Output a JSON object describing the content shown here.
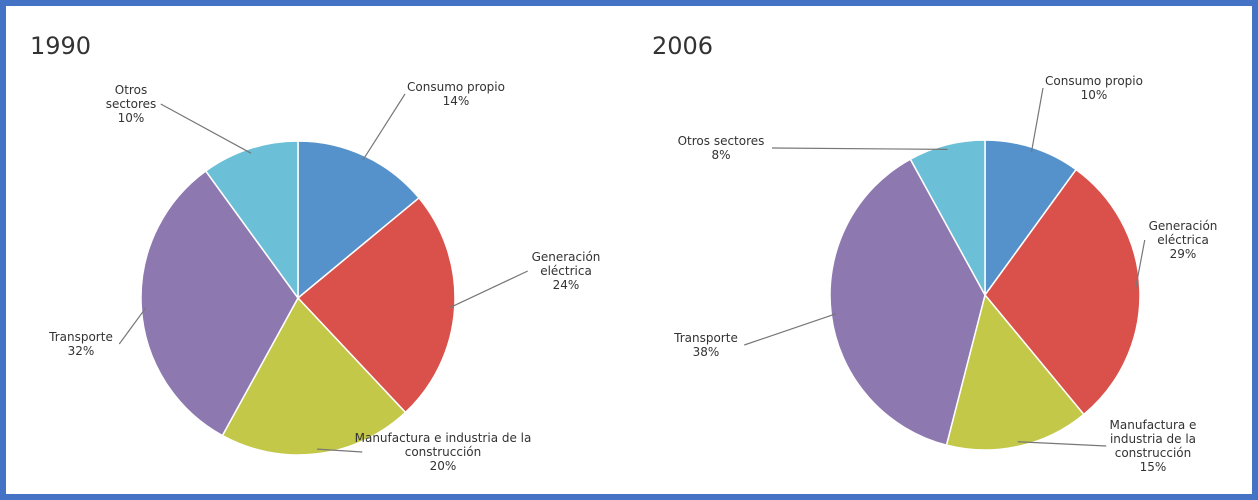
{
  "chart_data": [
    {
      "type": "pie",
      "title": "1990",
      "categories": [
        "Consumo propio",
        "Generación eléctrica",
        "Manufactura e industria de la construcción",
        "Transporte",
        "Otros sectores"
      ],
      "values": [
        14,
        24,
        20,
        32,
        10
      ],
      "value_labels": [
        "14%",
        "24%",
        "20%",
        "32%",
        "10%"
      ],
      "colors": [
        "#5592cb",
        "#d9514a",
        "#c3c849",
        "#8d78b0",
        "#6bbfd7"
      ]
    },
    {
      "type": "pie",
      "title": "2006",
      "categories": [
        "Consumo propio",
        "Generación eléctrica",
        "Manufactura e industria de la construcción",
        "Transporte",
        "Otros sectores"
      ],
      "values": [
        10,
        29,
        15,
        38,
        8
      ],
      "value_labels": [
        "10%",
        "29%",
        "15%",
        "38%",
        "8%"
      ],
      "colors": [
        "#5592cb",
        "#d9514a",
        "#c3c849",
        "#8d78b0",
        "#6bbfd7"
      ]
    }
  ]
}
